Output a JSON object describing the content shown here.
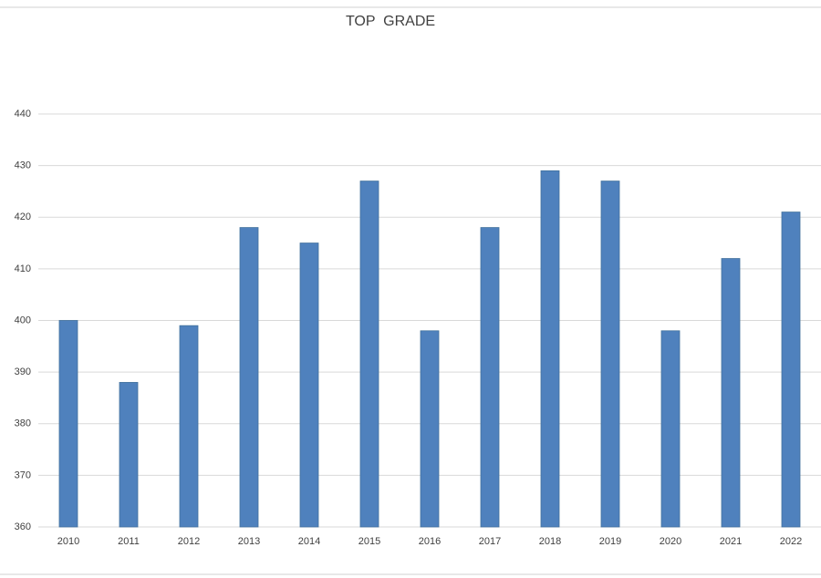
{
  "chart_data": {
    "type": "bar",
    "title": "TOP  GRADE",
    "categories": [
      "2010",
      "2011",
      "2012",
      "2013",
      "2014",
      "2015",
      "2016",
      "2017",
      "2018",
      "2019",
      "2020",
      "2021",
      "2022"
    ],
    "values": [
      400,
      388,
      399,
      418,
      415,
      427,
      398,
      418,
      429,
      427,
      398,
      412,
      421
    ],
    "color": "#4f81bd",
    "ylim": [
      360,
      440
    ],
    "yticks": [
      360,
      370,
      380,
      390,
      400,
      410,
      420,
      430,
      440
    ],
    "grid": true
  }
}
